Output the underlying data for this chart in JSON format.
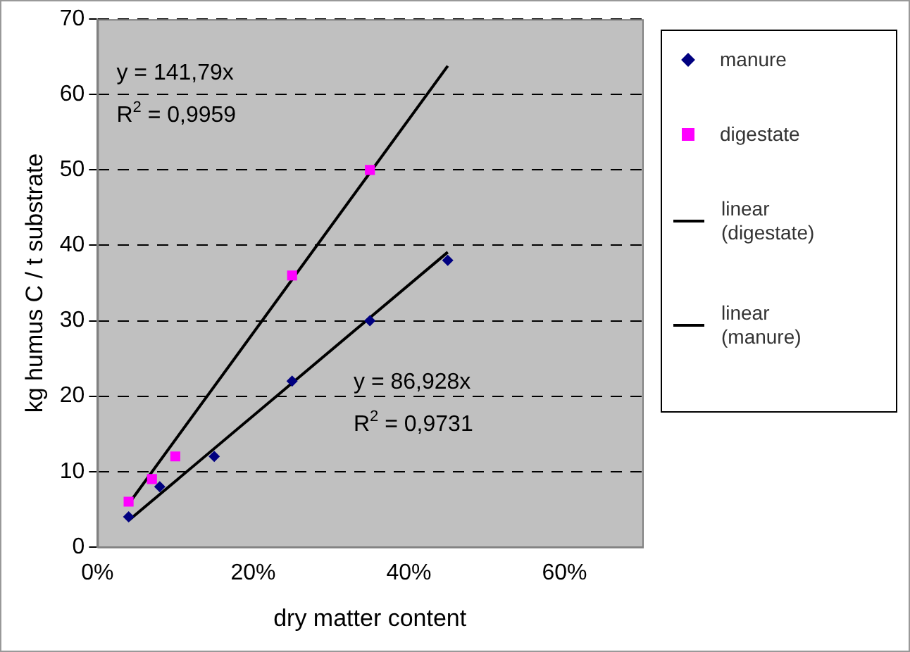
{
  "chart_data": {
    "type": "scatter",
    "xlabel": "dry matter content",
    "ylabel": "kg humus C / t substrate",
    "xlim": [
      0,
      0.7
    ],
    "xticks": [
      {
        "value": 0,
        "label": "0%"
      },
      {
        "value": 0.2,
        "label": "20%"
      },
      {
        "value": 0.4,
        "label": "40%"
      },
      {
        "value": 0.6,
        "label": "60%"
      }
    ],
    "ylim": [
      0,
      70
    ],
    "yticks": [
      0,
      10,
      20,
      30,
      40,
      50,
      60,
      70
    ],
    "grid": "y",
    "legend": "right",
    "series": [
      {
        "name": "manure",
        "marker": "diamond",
        "color": "#000080",
        "x": [
          0.04,
          0.08,
          0.15,
          0.25,
          0.35,
          0.45
        ],
        "values": [
          4,
          8,
          12,
          22,
          30,
          38
        ]
      },
      {
        "name": "digestate",
        "marker": "square",
        "color": "#ff00ff",
        "x": [
          0.04,
          0.07,
          0.1,
          0.25,
          0.35
        ],
        "values": [
          6,
          9,
          12,
          36,
          50
        ]
      },
      {
        "name": "linear (digestate)",
        "type": "line",
        "marker": "none",
        "color": "#000000",
        "x": [
          0.04,
          0.45
        ],
        "values": [
          5.7,
          63.8
        ]
      },
      {
        "name": "linear (manure)",
        "type": "line",
        "marker": "none",
        "color": "#000000",
        "x": [
          0.04,
          0.45
        ],
        "values": [
          3.5,
          39.1
        ]
      }
    ],
    "annotations": [
      "y = 141,79x",
      "R$^{2}$ = 0,9959",
      "y = 86,928x",
      "R$^{2}$ = 0,9731"
    ]
  }
}
